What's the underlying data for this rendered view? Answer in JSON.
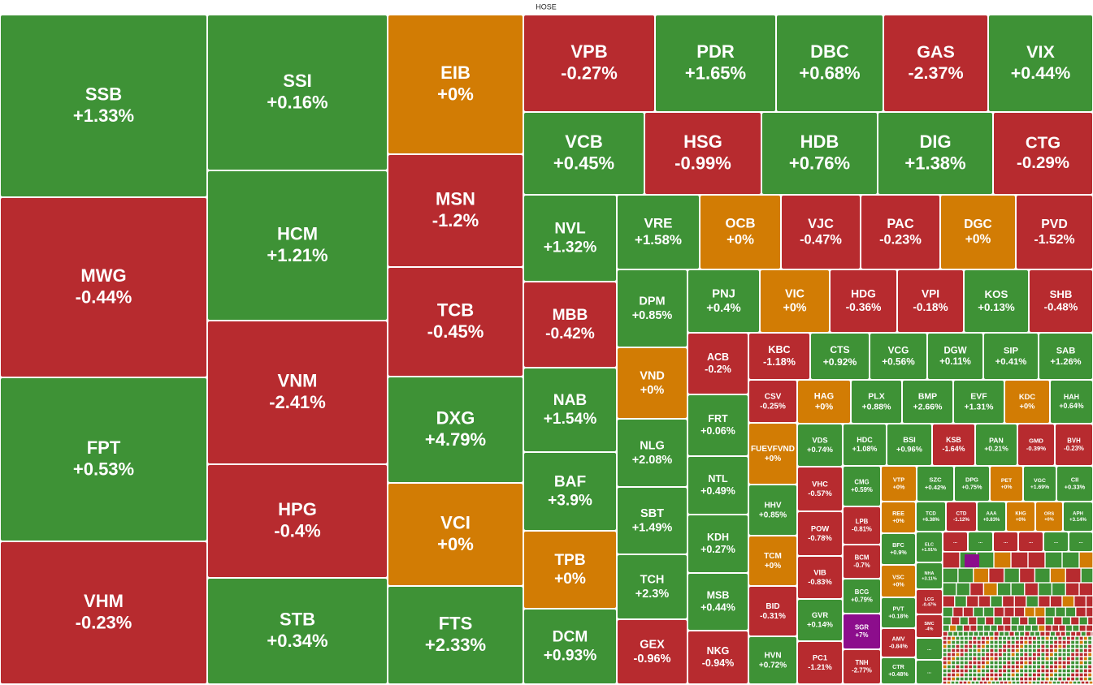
{
  "chart_data": {
    "type": "treemap",
    "title": "HOSE",
    "tiles": [
      {
        "ticker": "SSB",
        "value": 1.33,
        "value_label": "+1.33%",
        "color": "#3e9236"
      },
      {
        "ticker": "MWG",
        "value": -0.44,
        "value_label": "-0.44%",
        "color": "#b72b2f"
      },
      {
        "ticker": "FPT",
        "value": 0.53,
        "value_label": "+0.53%",
        "color": "#3e9236"
      },
      {
        "ticker": "VHM",
        "value": -0.23,
        "value_label": "-0.23%",
        "color": "#b72b2f"
      },
      {
        "ticker": "SSI",
        "value": 0.16,
        "value_label": "+0.16%",
        "color": "#3e9236"
      },
      {
        "ticker": "HCM",
        "value": 1.21,
        "value_label": "+1.21%",
        "color": "#3e9236"
      },
      {
        "ticker": "VNM",
        "value": -2.41,
        "value_label": "-2.41%",
        "color": "#b72b2f"
      },
      {
        "ticker": "HPG",
        "value": -0.4,
        "value_label": "-0.4%",
        "color": "#b72b2f"
      },
      {
        "ticker": "STB",
        "value": 0.34,
        "value_label": "+0.34%",
        "color": "#3e9236"
      },
      {
        "ticker": "EIB",
        "value": 0,
        "value_label": "+0%",
        "color": "#d27c04"
      },
      {
        "ticker": "MSN",
        "value": -1.2,
        "value_label": "-1.2%",
        "color": "#b72b2f"
      },
      {
        "ticker": "TCB",
        "value": -0.45,
        "value_label": "-0.45%",
        "color": "#b72b2f"
      },
      {
        "ticker": "DXG",
        "value": 4.79,
        "value_label": "+4.79%",
        "color": "#3e9236"
      },
      {
        "ticker": "VCI",
        "value": 0,
        "value_label": "+0%",
        "color": "#d27c04"
      },
      {
        "ticker": "FTS",
        "value": 2.33,
        "value_label": "+2.33%",
        "color": "#3e9236"
      },
      {
        "ticker": "VPB",
        "value": -0.27,
        "value_label": "-0.27%",
        "color": "#b72b2f"
      },
      {
        "ticker": "PDR",
        "value": 1.65,
        "value_label": "+1.65%",
        "color": "#3e9236"
      },
      {
        "ticker": "DBC",
        "value": 0.68,
        "value_label": "+0.68%",
        "color": "#3e9236"
      },
      {
        "ticker": "GAS",
        "value": -2.37,
        "value_label": "-2.37%",
        "color": "#b72b2f"
      },
      {
        "ticker": "VIX",
        "value": 0.44,
        "value_label": "+0.44%",
        "color": "#3e9236"
      },
      {
        "ticker": "VCB",
        "value": 0.45,
        "value_label": "+0.45%",
        "color": "#3e9236"
      },
      {
        "ticker": "HSG",
        "value": -0.99,
        "value_label": "-0.99%",
        "color": "#b72b2f"
      },
      {
        "ticker": "HDB",
        "value": 0.76,
        "value_label": "+0.76%",
        "color": "#3e9236"
      },
      {
        "ticker": "DIG",
        "value": 1.38,
        "value_label": "+1.38%",
        "color": "#3e9236"
      },
      {
        "ticker": "CTG",
        "value": -0.29,
        "value_label": "-0.29%",
        "color": "#b72b2f"
      },
      {
        "ticker": "NVL",
        "value": 1.32,
        "value_label": "+1.32%",
        "color": "#3e9236"
      },
      {
        "ticker": "MBB",
        "value": -0.42,
        "value_label": "-0.42%",
        "color": "#b72b2f"
      },
      {
        "ticker": "NAB",
        "value": 1.54,
        "value_label": "+1.54%",
        "color": "#3e9236"
      },
      {
        "ticker": "BAF",
        "value": 3.9,
        "value_label": "+3.9%",
        "color": "#3e9236"
      },
      {
        "ticker": "TPB",
        "value": 0,
        "value_label": "+0%",
        "color": "#d27c04"
      },
      {
        "ticker": "DCM",
        "value": 0.93,
        "value_label": "+0.93%",
        "color": "#3e9236"
      },
      {
        "ticker": "VRE",
        "value": 1.58,
        "value_label": "+1.58%",
        "color": "#3e9236"
      },
      {
        "ticker": "OCB",
        "value": 0,
        "value_label": "+0%",
        "color": "#d27c04"
      },
      {
        "ticker": "VJC",
        "value": -0.47,
        "value_label": "-0.47%",
        "color": "#b72b2f"
      },
      {
        "ticker": "PAC",
        "value": -0.23,
        "value_label": "-0.23%",
        "color": "#b72b2f"
      },
      {
        "ticker": "DGC",
        "value": 0,
        "value_label": "+0%",
        "color": "#d27c04"
      },
      {
        "ticker": "PVD",
        "value": -1.52,
        "value_label": "-1.52%",
        "color": "#b72b2f"
      },
      {
        "ticker": "DPM",
        "value": 0.85,
        "value_label": "+0.85%",
        "color": "#3e9236"
      },
      {
        "ticker": "VND",
        "value": 0,
        "value_label": "+0%",
        "color": "#d27c04"
      },
      {
        "ticker": "NLG",
        "value": 2.08,
        "value_label": "+2.08%",
        "color": "#3e9236"
      },
      {
        "ticker": "SBT",
        "value": 1.49,
        "value_label": "+1.49%",
        "color": "#3e9236"
      },
      {
        "ticker": "TCH",
        "value": 2.3,
        "value_label": "+2.3%",
        "color": "#3e9236"
      },
      {
        "ticker": "GEX",
        "value": -0.96,
        "value_label": "-0.96%",
        "color": "#b72b2f"
      },
      {
        "ticker": "PNJ",
        "value": 0.4,
        "value_label": "+0.4%",
        "color": "#3e9236"
      },
      {
        "ticker": "VIC",
        "value": 0,
        "value_label": "+0%",
        "color": "#d27c04"
      },
      {
        "ticker": "HDG",
        "value": -0.36,
        "value_label": "-0.36%",
        "color": "#b72b2f"
      },
      {
        "ticker": "VPI",
        "value": -0.18,
        "value_label": "-0.18%",
        "color": "#b72b2f"
      },
      {
        "ticker": "KOS",
        "value": 0.13,
        "value_label": "+0.13%",
        "color": "#3e9236"
      },
      {
        "ticker": "SHB",
        "value": -0.48,
        "value_label": "-0.48%",
        "color": "#b72b2f"
      },
      {
        "ticker": "ACB",
        "value": -0.2,
        "value_label": "-0.2%",
        "color": "#b72b2f"
      },
      {
        "ticker": "FRT",
        "value": 0.06,
        "value_label": "+0.06%",
        "color": "#3e9236"
      },
      {
        "ticker": "NTL",
        "value": 0.49,
        "value_label": "+0.49%",
        "color": "#3e9236"
      },
      {
        "ticker": "KDH",
        "value": 0.27,
        "value_label": "+0.27%",
        "color": "#3e9236"
      },
      {
        "ticker": "MSB",
        "value": 0.44,
        "value_label": "+0.44%",
        "color": "#3e9236"
      },
      {
        "ticker": "NKG",
        "value": -0.94,
        "value_label": "-0.94%",
        "color": "#b72b2f"
      },
      {
        "ticker": "KBC",
        "value": -1.18,
        "value_label": "-1.18%",
        "color": "#b72b2f"
      },
      {
        "ticker": "CTS",
        "value": 0.92,
        "value_label": "+0.92%",
        "color": "#3e9236"
      },
      {
        "ticker": "VCG",
        "value": 0.56,
        "value_label": "+0.56%",
        "color": "#3e9236"
      },
      {
        "ticker": "DGW",
        "value": 0.11,
        "value_label": "+0.11%",
        "color": "#3e9236"
      },
      {
        "ticker": "SIP",
        "value": 0.41,
        "value_label": "+0.41%",
        "color": "#3e9236"
      },
      {
        "ticker": "SAB",
        "value": 1.26,
        "value_label": "+1.26%",
        "color": "#3e9236"
      },
      {
        "ticker": "CSV",
        "value": -0.25,
        "value_label": "-0.25%",
        "color": "#b72b2f"
      },
      {
        "ticker": "FUEVFVND",
        "value": 0,
        "value_label": "+0%",
        "color": "#d27c04"
      },
      {
        "ticker": "HHV",
        "value": 0.85,
        "value_label": "+0.85%",
        "color": "#3e9236"
      },
      {
        "ticker": "TCM",
        "value": 0,
        "value_label": "+0%",
        "color": "#d27c04"
      },
      {
        "ticker": "BID",
        "value": -0.31,
        "value_label": "-0.31%",
        "color": "#b72b2f"
      },
      {
        "ticker": "HVN",
        "value": 0.72,
        "value_label": "+0.72%",
        "color": "#3e9236"
      },
      {
        "ticker": "HAG",
        "value": 0,
        "value_label": "+0%",
        "color": "#d27c04"
      },
      {
        "ticker": "PLX",
        "value": 0.88,
        "value_label": "+0.88%",
        "color": "#3e9236"
      },
      {
        "ticker": "BMP",
        "value": 2.66,
        "value_label": "+2.66%",
        "color": "#3e9236"
      },
      {
        "ticker": "EVF",
        "value": 1.31,
        "value_label": "+1.31%",
        "color": "#3e9236"
      },
      {
        "ticker": "KDC",
        "value": 0,
        "value_label": "+0%",
        "color": "#d27c04"
      },
      {
        "ticker": "HAH",
        "value": 0.64,
        "value_label": "+0.64%",
        "color": "#3e9236"
      },
      {
        "ticker": "VDS",
        "value": 0.74,
        "value_label": "+0.74%",
        "color": "#3e9236"
      },
      {
        "ticker": "VHC",
        "value": -0.57,
        "value_label": "-0.57%",
        "color": "#b72b2f"
      },
      {
        "ticker": "POW",
        "value": -0.78,
        "value_label": "-0.78%",
        "color": "#b72b2f"
      },
      {
        "ticker": "VIB",
        "value": -0.83,
        "value_label": "-0.83%",
        "color": "#b72b2f"
      },
      {
        "ticker": "GVR",
        "value": 0.14,
        "value_label": "+0.14%",
        "color": "#3e9236"
      },
      {
        "ticker": "PC1",
        "value": -1.21,
        "value_label": "-1.21%",
        "color": "#b72b2f"
      },
      {
        "ticker": "HDC",
        "value": 1.08,
        "value_label": "+1.08%",
        "color": "#3e9236"
      },
      {
        "ticker": "BSI",
        "value": 0.96,
        "value_label": "+0.96%",
        "color": "#3e9236"
      },
      {
        "ticker": "KSB",
        "value": -1.64,
        "value_label": "-1.64%",
        "color": "#b72b2f"
      },
      {
        "ticker": "PAN",
        "value": 0.21,
        "value_label": "+0.21%",
        "color": "#3e9236"
      },
      {
        "ticker": "GMD",
        "value": -0.39,
        "value_label": "-0.39%",
        "color": "#b72b2f"
      },
      {
        "ticker": "BVH",
        "value": -0.23,
        "value_label": "-0.23%",
        "color": "#b72b2f"
      },
      {
        "ticker": "CMG",
        "value": 0.59,
        "value_label": "+0.59%",
        "color": "#3e9236"
      },
      {
        "ticker": "LPB",
        "value": -0.81,
        "value_label": "-0.81%",
        "color": "#b72b2f"
      },
      {
        "ticker": "BCM",
        "value": -0.7,
        "value_label": "-0.7%",
        "color": "#b72b2f"
      },
      {
        "ticker": "BCG",
        "value": 0.79,
        "value_label": "+0.79%",
        "color": "#3e9236"
      },
      {
        "ticker": "SGR",
        "value": 7,
        "value_label": "+7%",
        "color": "#8c0d8c"
      },
      {
        "ticker": "TNH",
        "value": -2.77,
        "value_label": "-2.77%",
        "color": "#b72b2f"
      },
      {
        "ticker": "VTP",
        "value": 0,
        "value_label": "+0%",
        "color": "#d27c04"
      },
      {
        "ticker": "SZC",
        "value": 0.42,
        "value_label": "+0.42%",
        "color": "#3e9236"
      },
      {
        "ticker": "DPG",
        "value": 0.75,
        "value_label": "+0.75%",
        "color": "#3e9236"
      },
      {
        "ticker": "PET",
        "value": 0,
        "value_label": "+0%",
        "color": "#d27c04"
      },
      {
        "ticker": "VGC",
        "value": 1.69,
        "value_label": "+1.69%",
        "color": "#3e9236"
      },
      {
        "ticker": "CII",
        "value": 0.33,
        "value_label": "+0.33%",
        "color": "#3e9236"
      },
      {
        "ticker": "REE",
        "value": 0,
        "value_label": "+0%",
        "color": "#d27c04"
      },
      {
        "ticker": "BFC",
        "value": 0.9,
        "value_label": "+0.9%",
        "color": "#3e9236"
      },
      {
        "ticker": "VSC",
        "value": 0,
        "value_label": "+0%",
        "color": "#d27c04"
      },
      {
        "ticker": "PVT",
        "value": 0.18,
        "value_label": "+0.18%",
        "color": "#3e9236"
      },
      {
        "ticker": "AMV",
        "value": -0.84,
        "value_label": "-0.84%",
        "color": "#b72b2f"
      },
      {
        "ticker": "CTR",
        "value": 0.48,
        "value_label": "+0.48%",
        "color": "#3e9236"
      },
      {
        "ticker": "TCD",
        "value": 6.38,
        "value_label": "+6.38%",
        "color": "#3e9236"
      },
      {
        "ticker": "CTD",
        "value": -1.12,
        "value_label": "-1.12%",
        "color": "#b72b2f"
      },
      {
        "ticker": "AAA",
        "value": 0.83,
        "value_label": "+0.83%",
        "color": "#3e9236"
      },
      {
        "ticker": "KHG",
        "value": 0,
        "value_label": "+0%",
        "color": "#d27c04"
      },
      {
        "ticker": "ORS",
        "value": 0,
        "value_label": "+0%",
        "color": "#d27c04"
      },
      {
        "ticker": "APH",
        "value": 3.14,
        "value_label": "+3.14%",
        "color": "#3e9236"
      },
      {
        "ticker": "ELC",
        "value": 1.91,
        "value_label": "+1.91%",
        "color": "#3e9236"
      },
      {
        "ticker": "NHA",
        "value": 3.11,
        "value_label": "+3.11%",
        "color": "#3e9236"
      },
      {
        "ticker": "LCG",
        "value": -0.47,
        "value_label": "-0.47%",
        "color": "#b72b2f"
      },
      {
        "ticker": "SMC",
        "value": -4,
        "value_label": "-4%",
        "color": "#b72b2f"
      }
    ],
    "collapsed_tiles": [
      {
        "label": "...",
        "color": "#3e9236"
      },
      {
        "label": "...",
        "color": "#3e9236"
      },
      {
        "label": "...",
        "color": "#b72b2f"
      },
      {
        "label": "...",
        "color": "#3e9236"
      },
      {
        "label": "...",
        "color": "#b72b2f"
      },
      {
        "label": "...",
        "color": "#b72b2f"
      },
      {
        "label": "...",
        "color": "#3e9236"
      },
      {
        "label": "...",
        "color": "#3e9236"
      }
    ]
  }
}
